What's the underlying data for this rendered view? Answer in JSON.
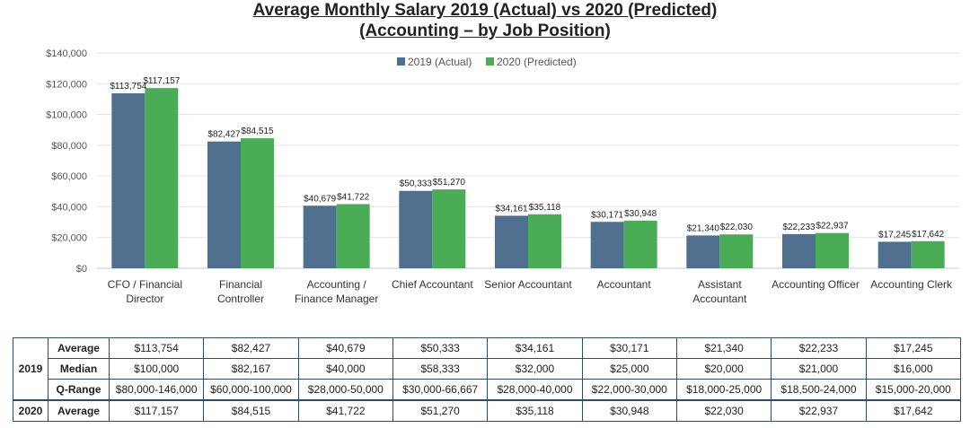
{
  "title_line1": "Average Monthly Salary 2019 (Actual) vs 2020 (Predicted)",
  "title_line2": "(Accounting – by Job Position)",
  "colors": {
    "series_2019": "#4e6f8e",
    "series_2020": "#4aad55",
    "grid": "#e3e3e3",
    "table_border": "#2b4a7a"
  },
  "chart_data": {
    "type": "bar",
    "title": "Average Monthly Salary 2019 (Actual) vs 2020 (Predicted) (Accounting – by Job Position)",
    "categories": [
      [
        "CFO / Financial",
        "Director"
      ],
      [
        "Financial",
        "Controller"
      ],
      [
        "Accounting /",
        "Finance Manager"
      ],
      [
        "Chief Accountant"
      ],
      [
        "Senior Accountant"
      ],
      [
        "Accountant"
      ],
      [
        "Assistant",
        "Accountant"
      ],
      [
        "Accounting Officer"
      ],
      [
        "Accounting Clerk"
      ]
    ],
    "series": [
      {
        "name": "2019 (Actual)",
        "values": [
          113754,
          82427,
          40679,
          50333,
          34161,
          30171,
          21340,
          22233,
          17245
        ]
      },
      {
        "name": "2020 (Predicted)",
        "values": [
          117157,
          84515,
          41722,
          51270,
          35118,
          30948,
          22030,
          22937,
          17642
        ]
      }
    ],
    "data_labels": [
      [
        "$113,754",
        "$82,427",
        "$40,679",
        "$50,333",
        "$34,161",
        "$30,171",
        "$21,340",
        "$22,233",
        "$17,245"
      ],
      [
        "$117,157",
        "$84,515",
        "$41,722",
        "$51,270",
        "$35,118",
        "$30,948",
        "$22,030",
        "$22,937",
        "$17,642"
      ]
    ],
    "ylim": [
      0,
      140000
    ],
    "yticks": [
      0,
      20000,
      40000,
      60000,
      80000,
      100000,
      120000,
      140000
    ],
    "ytick_labels": [
      "$0",
      "$20,000",
      "$40,000",
      "$60,000",
      "$80,000",
      "$100,000",
      "$120,000",
      "$140,000"
    ],
    "grid": true,
    "legend_position": "top-center"
  },
  "table": {
    "rows": [
      {
        "year": "2019",
        "metric": "Average",
        "values": [
          "$113,754",
          "$82,427",
          "$40,679",
          "$50,333",
          "$34,161",
          "$30,171",
          "$21,340",
          "$22,233",
          "$17,245"
        ]
      },
      {
        "year": "",
        "metric": "Median",
        "values": [
          "$100,000",
          "$82,167",
          "$40,000",
          "$58,333",
          "$32,000",
          "$25,000",
          "$20,000",
          "$21,000",
          "$16,000"
        ]
      },
      {
        "year": "",
        "metric": "Q-Range",
        "values": [
          "$80,000-146,000",
          "$60,000-100,000",
          "$28,000-50,000",
          "$30,000-66,667",
          "$28,000-40,000",
          "$22,000-30,000",
          "$18,000-25,000",
          "$18,500-24,000",
          "$15,000-20,000"
        ]
      },
      {
        "year": "2020",
        "metric": "Average",
        "values": [
          "$117,157",
          "$84,515",
          "$41,722",
          "$51,270",
          "$35,118",
          "$30,948",
          "$22,030",
          "$22,937",
          "$17,642"
        ]
      }
    ]
  }
}
